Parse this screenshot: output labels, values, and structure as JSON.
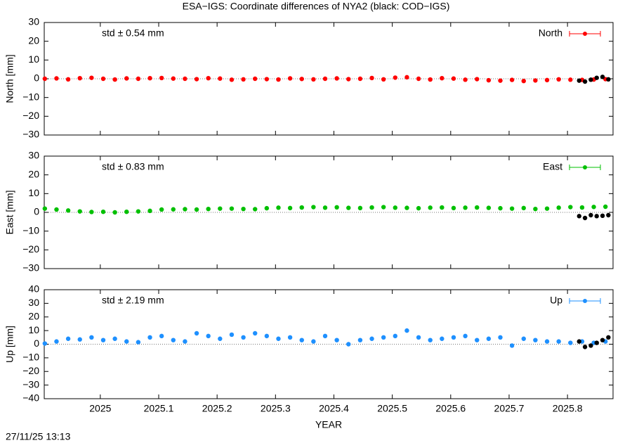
{
  "title": "ESA−IGS: Coordinate differences of NYA2 (black: COD−IGS)",
  "footer": "27/11/25 13:13",
  "chart_data": [
    {
      "type": "scatter",
      "ylabel": "North [mm]",
      "annotation": "std ± 0.54 mm",
      "legend": "top right",
      "xlim": [
        2024.904,
        2025.878
      ],
      "xticks": [
        2025,
        2025.1,
        2025.2,
        2025.3,
        2025.4,
        2025.5,
        2025.6,
        2025.7,
        2025.8
      ],
      "ylim": [
        -30,
        30
      ],
      "yticks": [
        {
          "value": -30,
          "label": "−30"
        },
        {
          "value": -20,
          "label": "−20"
        },
        {
          "value": -10,
          "label": "−10"
        },
        0,
        10,
        20,
        30
      ],
      "series": [
        {
          "name": "North",
          "color": "#ff0000",
          "x": [
            2024.905,
            2024.925,
            2024.945,
            2024.965,
            2024.985,
            2025.005,
            2025.025,
            2025.045,
            2025.065,
            2025.085,
            2025.105,
            2025.125,
            2025.145,
            2025.165,
            2025.185,
            2025.205,
            2025.225,
            2025.245,
            2025.265,
            2025.285,
            2025.305,
            2025.325,
            2025.345,
            2025.365,
            2025.385,
            2025.405,
            2025.425,
            2025.445,
            2025.465,
            2025.485,
            2025.505,
            2025.525,
            2025.545,
            2025.565,
            2025.585,
            2025.605,
            2025.625,
            2025.645,
            2025.665,
            2025.685,
            2025.705,
            2025.725,
            2025.745,
            2025.765,
            2025.785,
            2025.805,
            2025.825,
            2025.845,
            2025.865
          ],
          "values": [
            0,
            0.2,
            -0.3,
            0.3,
            0.5,
            0,
            -0.4,
            0.2,
            0,
            0.3,
            0.4,
            0.1,
            0,
            -0.2,
            0.3,
            0.1,
            -0.5,
            -0.3,
            0,
            -0.2,
            -0.4,
            0.2,
            -0.1,
            -0.3,
            0,
            0.2,
            -0.2,
            0,
            0.4,
            -0.3,
            0.6,
            0.8,
            0,
            -0.4,
            0.3,
            0.1,
            -0.5,
            -0.2,
            -0.8,
            -1,
            -0.6,
            -1.2,
            -0.9,
            -0.7,
            -0.3,
            -0.5,
            -0.6,
            -0.4,
            -0.2
          ]
        }
      ],
      "comparison": {
        "color": "#000000",
        "x": [
          2025.82,
          2025.83,
          2025.84,
          2025.85,
          2025.86,
          2025.87
        ],
        "values": [
          -1,
          -1.5,
          -0.5,
          0.5,
          1,
          -0.3
        ]
      }
    },
    {
      "type": "scatter",
      "ylabel": "East [mm]",
      "annotation": "std ± 0.83 mm",
      "legend": "top right",
      "xlim": [
        2024.904,
        2025.878
      ],
      "xticks": [
        2025,
        2025.1,
        2025.2,
        2025.3,
        2025.4,
        2025.5,
        2025.6,
        2025.7,
        2025.8
      ],
      "ylim": [
        -30,
        30
      ],
      "yticks": [
        {
          "value": -30,
          "label": "−30"
        },
        {
          "value": -20,
          "label": "−20"
        },
        {
          "value": -10,
          "label": "−10"
        },
        0,
        10,
        20,
        30
      ],
      "series": [
        {
          "name": "East",
          "color": "#00c000",
          "x": [
            2024.905,
            2024.925,
            2024.945,
            2024.965,
            2024.985,
            2025.005,
            2025.025,
            2025.045,
            2025.065,
            2025.085,
            2025.105,
            2025.125,
            2025.145,
            2025.165,
            2025.185,
            2025.205,
            2025.225,
            2025.245,
            2025.265,
            2025.285,
            2025.305,
            2025.325,
            2025.345,
            2025.365,
            2025.385,
            2025.405,
            2025.425,
            2025.445,
            2025.465,
            2025.485,
            2025.505,
            2025.525,
            2025.545,
            2025.565,
            2025.585,
            2025.605,
            2025.625,
            2025.645,
            2025.665,
            2025.685,
            2025.705,
            2025.725,
            2025.745,
            2025.765,
            2025.785,
            2025.805,
            2025.825,
            2025.845,
            2025.865
          ],
          "values": [
            2,
            1.5,
            1,
            0.5,
            0.2,
            0.3,
            0,
            0.3,
            0.5,
            0.8,
            1.5,
            1.6,
            1.7,
            1.5,
            1.8,
            2,
            2,
            1.8,
            1.7,
            2.2,
            2.5,
            2.3,
            2.6,
            2.8,
            2.5,
            2.7,
            2.4,
            2.3,
            2.6,
            2.8,
            2.5,
            2.4,
            2.2,
            2.5,
            2.6,
            2.3,
            2.5,
            2.6,
            2.4,
            2.2,
            2,
            2.3,
            1.8,
            2,
            2.5,
            2.8,
            2.6,
            2.9,
            3
          ]
        }
      ],
      "comparison": {
        "color": "#000000",
        "x": [
          2025.82,
          2025.83,
          2025.84,
          2025.85,
          2025.86,
          2025.87
        ],
        "values": [
          -2,
          -3,
          -1.5,
          -2,
          -1.8,
          -1.5
        ]
      }
    },
    {
      "type": "scatter",
      "ylabel": "Up [mm]",
      "xlabel": "YEAR",
      "annotation": "std ± 2.19 mm",
      "legend": "top right",
      "xlim": [
        2024.904,
        2025.878
      ],
      "xticks": [
        2025,
        2025.1,
        2025.2,
        2025.3,
        2025.4,
        2025.5,
        2025.6,
        2025.7,
        2025.8
      ],
      "ylim": [
        -40,
        40
      ],
      "yticks": [
        {
          "value": -40,
          "label": "−40"
        },
        {
          "value": -30,
          "label": "−30"
        },
        {
          "value": -20,
          "label": "−20"
        },
        {
          "value": -10,
          "label": "−10"
        },
        0,
        10,
        20,
        30,
        40
      ],
      "series": [
        {
          "name": "Up",
          "color": "#1e90ff",
          "x": [
            2024.905,
            2024.925,
            2024.945,
            2024.965,
            2024.985,
            2025.005,
            2025.025,
            2025.045,
            2025.065,
            2025.085,
            2025.105,
            2025.125,
            2025.145,
            2025.165,
            2025.185,
            2025.205,
            2025.225,
            2025.245,
            2025.265,
            2025.285,
            2025.305,
            2025.325,
            2025.345,
            2025.365,
            2025.385,
            2025.405,
            2025.425,
            2025.445,
            2025.465,
            2025.485,
            2025.505,
            2025.525,
            2025.545,
            2025.565,
            2025.585,
            2025.605,
            2025.625,
            2025.645,
            2025.665,
            2025.685,
            2025.705,
            2025.725,
            2025.745,
            2025.765,
            2025.785,
            2025.805,
            2025.825,
            2025.845,
            2025.865
          ],
          "values": [
            0.5,
            2,
            4,
            3.5,
            5,
            3,
            4,
            2,
            1.5,
            5,
            6,
            3,
            2,
            8,
            6,
            4,
            7,
            5,
            8,
            6,
            4,
            5,
            3,
            2,
            6,
            3,
            0,
            3,
            4,
            5,
            6,
            10,
            5,
            3,
            4,
            5,
            6,
            3,
            4,
            5,
            -1,
            4,
            3,
            2,
            2,
            1,
            2,
            1,
            2
          ]
        }
      ],
      "comparison": {
        "color": "#000000",
        "x": [
          2025.82,
          2025.83,
          2025.84,
          2025.85,
          2025.86,
          2025.87
        ],
        "values": [
          2,
          -2,
          -1,
          1,
          3,
          5
        ]
      }
    }
  ]
}
